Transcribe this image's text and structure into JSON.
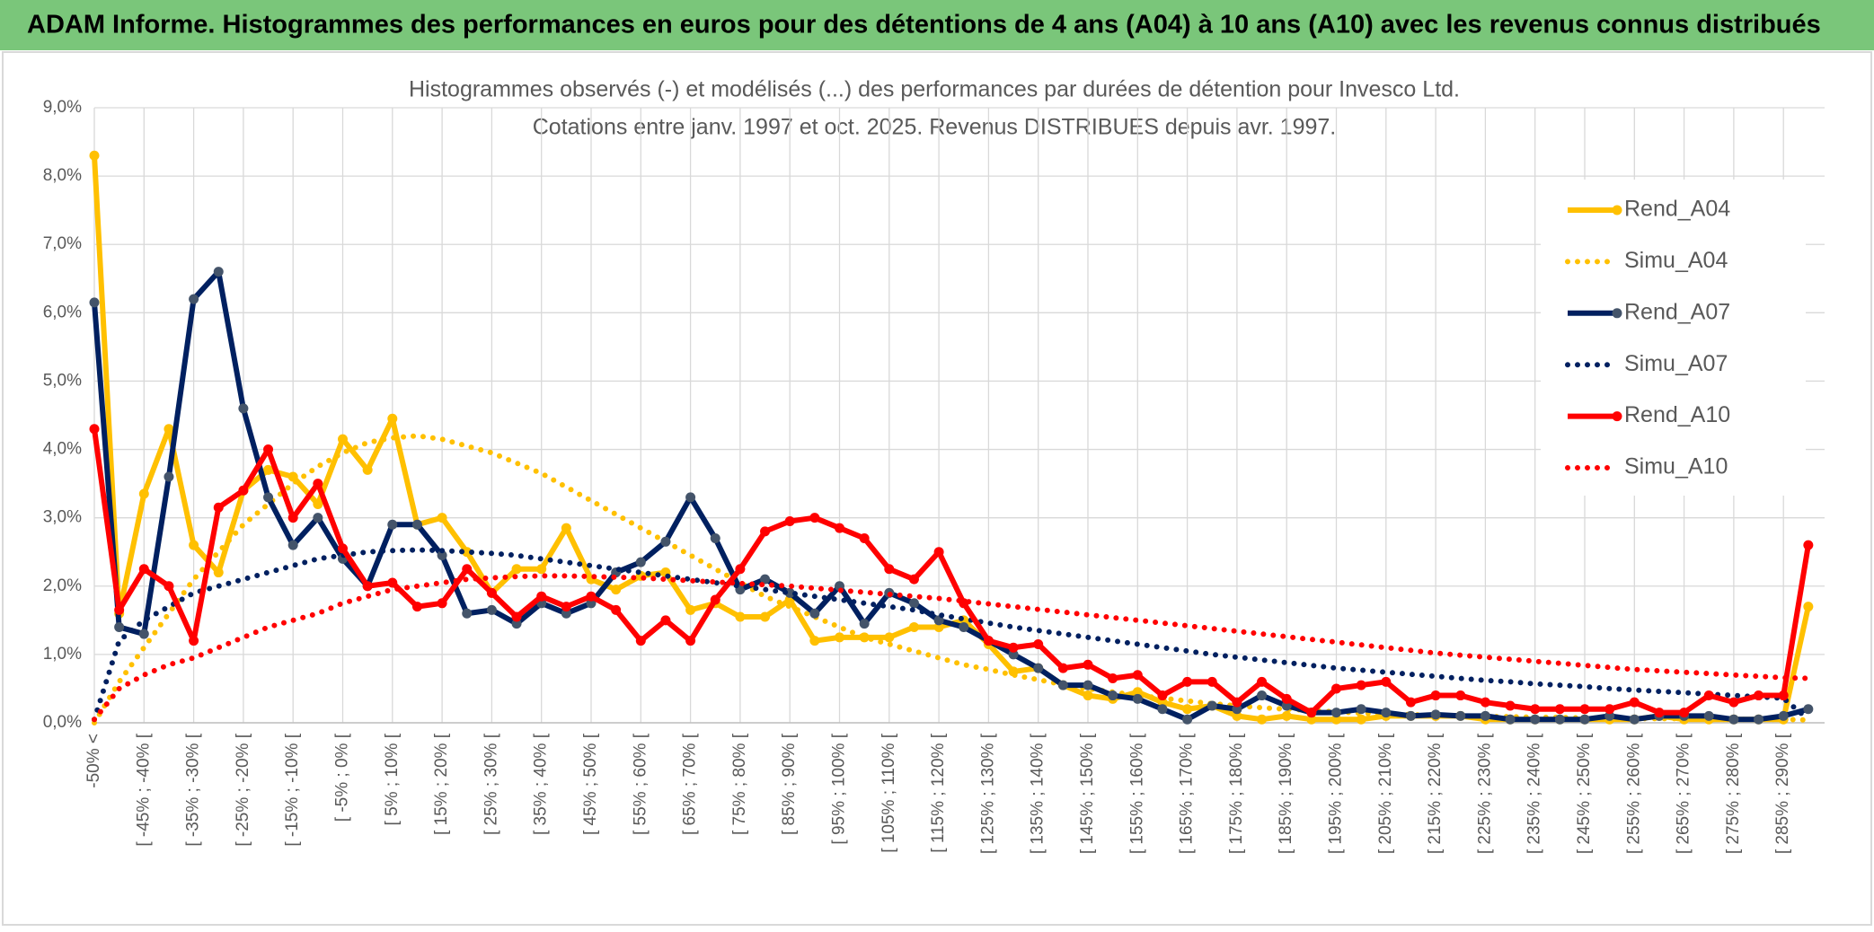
{
  "chart_data": {
    "type": "line",
    "page_title": "ADAM Informe. Histogrammes des performances en euros pour des détentions de 4 ans (A04) à 10 ans (A10) avec les revenus connus distribués",
    "title": "Histogrammes observés (-) et modélisés (...) des performances par durées de détention pour Invesco Ltd.",
    "subtitle": "Cotations entre janv. 1997 et oct. 2025. Revenus DISTRIBUES depuis avr. 1997.",
    "categories": [
      "-50% <",
      null,
      "[ -45% ; -40% [",
      null,
      "[ -35% ; -30% [",
      null,
      "[ -25% ; -20% [",
      null,
      "[ -15% ; -10% [",
      null,
      "[ -5% ; 0% [",
      null,
      "[ 5% ; 10% [",
      null,
      "[ 15% ; 20% [",
      null,
      "[ 25% ; 30% [",
      null,
      "[ 35% ; 40% [",
      null,
      "[ 45% ; 50% [",
      null,
      "[ 55% ; 60% [",
      null,
      "[ 65% ; 70% [",
      null,
      "[ 75% ; 80% [",
      null,
      "[ 85% ; 90% [",
      null,
      "[ 95% ; 100% [",
      null,
      "[ 105% ; 110% [",
      null,
      "[ 115% ; 120% [",
      null,
      "[ 125% ; 130% [",
      null,
      "[ 135% ; 140% [",
      null,
      "[ 145% ; 150% [",
      null,
      "[ 155% ; 160% [",
      null,
      "[ 165% ; 170% [",
      null,
      "[ 175% ; 180% [",
      null,
      "[ 185% ; 190% [",
      null,
      "[ 195% ; 200% [",
      null,
      "[ 205% ; 210% [",
      null,
      "[ 215% ; 220% [",
      null,
      "[ 225% ; 230% [",
      null,
      "[ 235% ; 240% [",
      null,
      "[ 245% ; 250% [",
      null,
      "[ 255% ; 260% [",
      null,
      "[ 265% ; 270% [",
      null,
      "[ 275% ; 280% [",
      null,
      "[ 285% ; 290% [",
      null
    ],
    "series": [
      {
        "name": "Rend_A04",
        "color": "#ffc000",
        "marker_color": "#ffc000",
        "dotted": false,
        "values": [
          8.3,
          1.6,
          3.35,
          4.3,
          2.6,
          2.2,
          3.4,
          3.7,
          3.6,
          3.2,
          4.15,
          3.7,
          4.45,
          2.9,
          3.0,
          2.5,
          1.9,
          2.25,
          2.25,
          2.85,
          2.1,
          1.95,
          2.15,
          2.2,
          1.65,
          1.75,
          1.55,
          1.55,
          1.8,
          1.2,
          1.25,
          1.25,
          1.25,
          1.4,
          1.4,
          1.5,
          1.15,
          0.75,
          0.8,
          0.55,
          0.4,
          0.35,
          0.45,
          0.3,
          0.2,
          0.25,
          0.1,
          0.05,
          0.1,
          0.05,
          0.05,
          0.05,
          0.1,
          0.1,
          0.1,
          0.1,
          0.05,
          0.05,
          0.05,
          0.05,
          0.05,
          0.05,
          0.05,
          0.1,
          0.05,
          0.05,
          0.05,
          0.05,
          0.05,
          1.7
        ]
      },
      {
        "name": "Simu_A04",
        "color": "#ffc000",
        "dotted": true,
        "values": [
          0,
          0.6,
          1.1,
          1.6,
          2.1,
          2.5,
          2.9,
          3.2,
          3.5,
          3.75,
          3.95,
          4.1,
          4.17,
          4.2,
          4.15,
          4.05,
          3.95,
          3.8,
          3.65,
          3.45,
          3.25,
          3.05,
          2.85,
          2.65,
          2.45,
          2.25,
          2.05,
          1.85,
          1.7,
          1.55,
          1.4,
          1.25,
          1.15,
          1.05,
          0.95,
          0.85,
          0.78,
          0.7,
          0.63,
          0.56,
          0.5,
          0.45,
          0.4,
          0.36,
          0.32,
          0.28,
          0.25,
          0.22,
          0.2,
          0.18,
          0.16,
          0.14,
          0.13,
          0.12,
          0.11,
          0.1,
          0.09,
          0.09,
          0.08,
          0.08,
          0.07,
          0.07,
          0.06,
          0.06,
          0.06,
          0.05,
          0.05,
          0.05,
          0.05,
          0.04
        ]
      },
      {
        "name": "Rend_A07",
        "color": "#002060",
        "marker_color": "#44546a",
        "dotted": false,
        "values": [
          6.15,
          1.4,
          1.3,
          3.6,
          6.2,
          6.6,
          4.6,
          3.3,
          2.6,
          3.0,
          2.4,
          2.0,
          2.9,
          2.9,
          2.45,
          1.6,
          1.65,
          1.45,
          1.75,
          1.6,
          1.75,
          2.2,
          2.35,
          2.65,
          3.3,
          2.7,
          1.95,
          2.1,
          1.9,
          1.6,
          2.0,
          1.45,
          1.9,
          1.75,
          1.5,
          1.4,
          1.2,
          1.0,
          0.8,
          0.55,
          0.55,
          0.4,
          0.35,
          0.2,
          0.05,
          0.25,
          0.2,
          0.4,
          0.25,
          0.15,
          0.15,
          0.2,
          0.15,
          0.1,
          0.12,
          0.1,
          0.1,
          0.05,
          0.05,
          0.05,
          0.05,
          0.1,
          0.05,
          0.1,
          0.1,
          0.1,
          0.05,
          0.05,
          0.1,
          0.2
        ]
      },
      {
        "name": "Simu_A07",
        "color": "#002060",
        "dotted": true,
        "values": [
          0.05,
          1.2,
          1.5,
          1.7,
          1.9,
          2.0,
          2.1,
          2.2,
          2.3,
          2.4,
          2.45,
          2.5,
          2.52,
          2.53,
          2.52,
          2.5,
          2.48,
          2.45,
          2.4,
          2.35,
          2.3,
          2.25,
          2.2,
          2.15,
          2.1,
          2.05,
          2.0,
          1.95,
          1.9,
          1.85,
          1.8,
          1.75,
          1.7,
          1.65,
          1.58,
          1.52,
          1.46,
          1.4,
          1.35,
          1.3,
          1.25,
          1.2,
          1.15,
          1.1,
          1.05,
          1.0,
          0.96,
          0.92,
          0.88,
          0.84,
          0.8,
          0.77,
          0.74,
          0.71,
          0.68,
          0.65,
          0.62,
          0.6,
          0.57,
          0.55,
          0.53,
          0.5,
          0.48,
          0.46,
          0.44,
          0.42,
          0.4,
          0.38,
          0.36,
          0.05
        ]
      },
      {
        "name": "Rend_A10",
        "color": "#ff0000",
        "marker_color": "#ff0000",
        "dotted": false,
        "values": [
          4.3,
          1.65,
          2.25,
          2.0,
          1.2,
          3.15,
          3.4,
          4.0,
          3.0,
          3.5,
          2.55,
          2.0,
          2.05,
          1.7,
          1.75,
          2.25,
          1.9,
          1.55,
          1.85,
          1.7,
          1.85,
          1.65,
          1.2,
          1.5,
          1.2,
          1.8,
          2.25,
          2.8,
          2.95,
          3.0,
          2.85,
          2.7,
          2.25,
          2.1,
          2.5,
          1.75,
          1.2,
          1.1,
          1.15,
          0.8,
          0.85,
          0.65,
          0.7,
          0.4,
          0.6,
          0.6,
          0.3,
          0.6,
          0.35,
          0.15,
          0.5,
          0.55,
          0.6,
          0.3,
          0.4,
          0.4,
          0.3,
          0.25,
          0.2,
          0.2,
          0.2,
          0.2,
          0.3,
          0.15,
          0.15,
          0.4,
          0.3,
          0.4,
          0.4,
          2.6
        ]
      },
      {
        "name": "Simu_A10",
        "color": "#ff0000",
        "dotted": true,
        "values": [
          0.05,
          0.5,
          0.7,
          0.85,
          0.95,
          1.1,
          1.25,
          1.4,
          1.5,
          1.6,
          1.75,
          1.85,
          1.95,
          2.0,
          2.05,
          2.1,
          2.12,
          2.14,
          2.15,
          2.15,
          2.14,
          2.13,
          2.12,
          2.1,
          2.08,
          2.06,
          2.04,
          2.02,
          2.0,
          1.97,
          1.94,
          1.91,
          1.88,
          1.85,
          1.82,
          1.78,
          1.74,
          1.7,
          1.66,
          1.62,
          1.58,
          1.54,
          1.5,
          1.46,
          1.42,
          1.38,
          1.34,
          1.3,
          1.26,
          1.22,
          1.18,
          1.14,
          1.1,
          1.06,
          1.02,
          0.99,
          0.96,
          0.93,
          0.9,
          0.87,
          0.84,
          0.81,
          0.78,
          0.76,
          0.74,
          0.72,
          0.7,
          0.68,
          0.66,
          0.65
        ]
      }
    ],
    "ylim": [
      0,
      9
    ],
    "yticks": [
      {
        "value": 0,
        "label": "0,0%"
      },
      {
        "value": 1,
        "label": "1,0%"
      },
      {
        "value": 2,
        "label": "2,0%"
      },
      {
        "value": 3,
        "label": "3,0%"
      },
      {
        "value": 4,
        "label": "4,0%"
      },
      {
        "value": 5,
        "label": "5,0%"
      },
      {
        "value": 6,
        "label": "6,0%"
      },
      {
        "value": 7,
        "label": "7,0%"
      },
      {
        "value": 8,
        "label": "8,0%"
      },
      {
        "value": 9,
        "label": "9,0%"
      }
    ],
    "grid": true,
    "legend": "right"
  }
}
